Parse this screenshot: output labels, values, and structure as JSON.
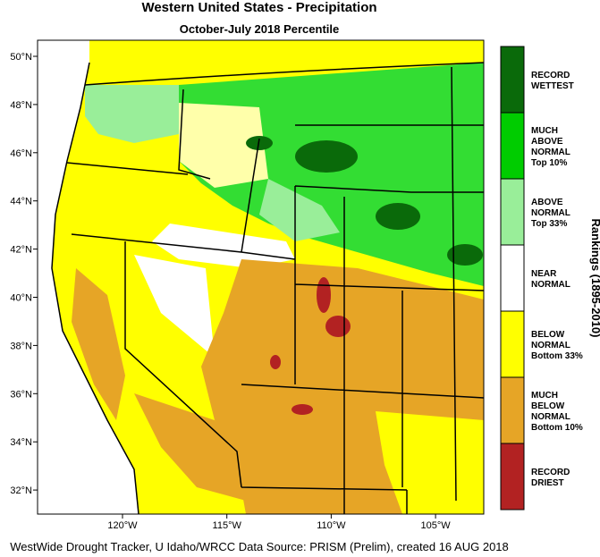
{
  "header": {
    "title": "Western United States - Precipitation",
    "subtitle": "October-July 2018 Percentile"
  },
  "map": {
    "lat_labels": [
      "50°N",
      "48°N",
      "46°N",
      "44°N",
      "42°N",
      "40°N",
      "38°N",
      "36°N",
      "34°N",
      "32°N"
    ],
    "lon_labels": [
      "120°W",
      "115°W",
      "110°W",
      "105°W"
    ]
  },
  "legend": {
    "title": "Rankings (1895-2010)",
    "items": [
      {
        "lines": [
          "RECORD",
          "WETTEST"
        ],
        "color": "#0a6a0a"
      },
      {
        "lines": [
          "MUCH",
          "ABOVE",
          "NORMAL",
          "Top 10%"
        ],
        "color": "#00cc00"
      },
      {
        "lines": [
          "ABOVE",
          "NORMAL",
          "Top 33%"
        ],
        "color": "#99ee99"
      },
      {
        "lines": [
          "NEAR",
          "NORMAL"
        ],
        "color": "#ffffff"
      },
      {
        "lines": [
          "BELOW",
          "NORMAL",
          "Bottom 33%"
        ],
        "color": "#ffff00"
      },
      {
        "lines": [
          "MUCH",
          "BELOW",
          "NORMAL",
          "Bottom 10%"
        ],
        "color": "#e6a526"
      },
      {
        "lines": [
          "RECORD",
          "DRIEST"
        ],
        "color": "#b22222"
      }
    ]
  },
  "footer": "WestWide Drought Tracker, U Idaho/WRCC Data Source: PRISM (Prelim), created 16 AUG 2018"
}
